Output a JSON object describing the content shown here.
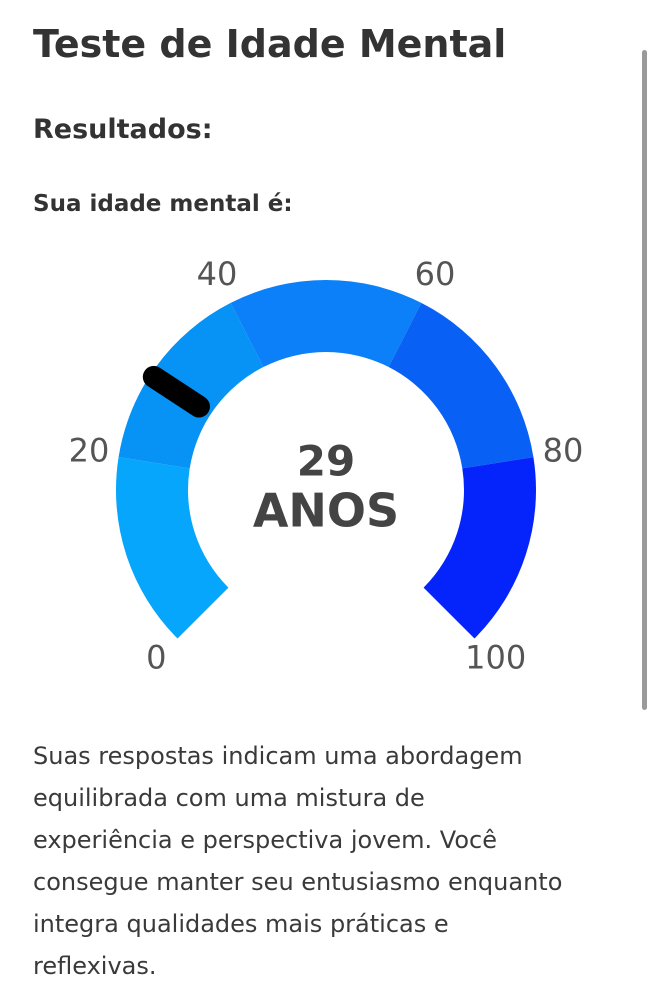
{
  "header": {
    "title": "Teste de Idade Mental"
  },
  "results": {
    "heading": "Resultados:",
    "label": "Sua idade mental é:"
  },
  "gauge": {
    "type": "gauge",
    "value": 29,
    "unit": "ANOS",
    "range": [
      0,
      100
    ],
    "ticks": [
      0,
      20,
      40,
      60,
      80,
      100
    ],
    "band_colors": [
      "#05a6fb",
      "#0693f5",
      "#0b80f9",
      "#0960f4",
      "#0524fb"
    ],
    "needle_color": "#000000"
  },
  "description": {
    "lines": [
      "Suas respostas indicam uma abordagem",
      "equilibrada com uma mistura de",
      "experiência e perspectiva jovem. Você",
      "consegue manter seu entusiasmo enquanto",
      "integra qualidades mais práticas e",
      "reflexivas."
    ]
  }
}
